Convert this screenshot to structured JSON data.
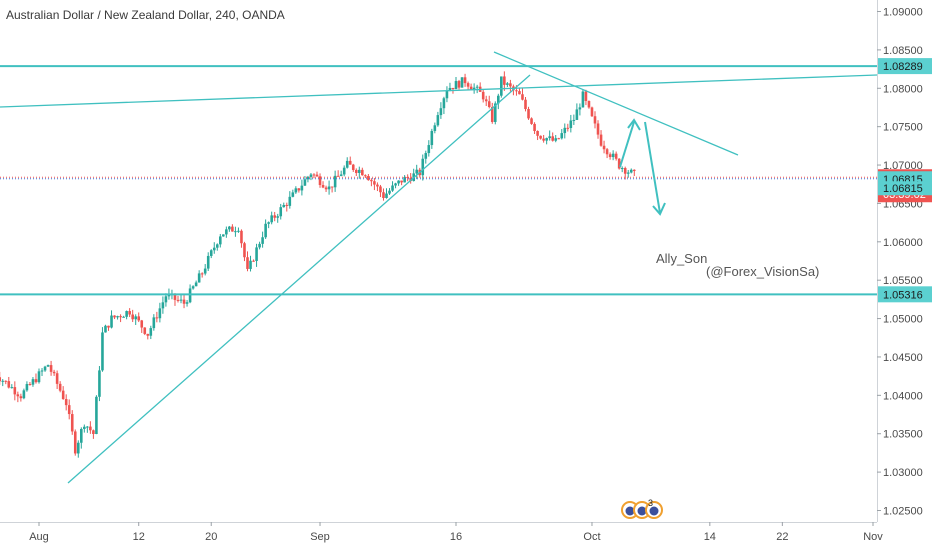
{
  "chart_data": {
    "type": "candlestick",
    "title": "Australian Dollar / New Zealand Dollar, 240, OANDA",
    "symbol": "AUD/NZD",
    "interval": "240",
    "broker": "OANDA",
    "ylim": [
      1.0235,
      1.0915
    ],
    "y_ticks": [
      "1.02500",
      "1.03000",
      "1.03500",
      "1.04000",
      "1.04500",
      "1.05000",
      "1.05500",
      "1.06000",
      "1.06500",
      "1.07000",
      "1.07500",
      "1.08000",
      "1.08500",
      "1.09000"
    ],
    "x_ticks": [
      {
        "label": "Aug",
        "date": "2019-08-01"
      },
      {
        "label": "12",
        "date": "2019-08-12"
      },
      {
        "label": "20",
        "date": "2019-08-20"
      },
      {
        "label": "Sep",
        "date": "2019-09-01"
      },
      {
        "label": "16",
        "date": "2019-09-16"
      },
      {
        "label": "Oct",
        "date": "2019-10-01"
      },
      {
        "label": "14",
        "date": "2019-10-14"
      },
      {
        "label": "22",
        "date": "2019-10-22"
      },
      {
        "label": "Nov",
        "date": "2019-11-01"
      }
    ],
    "series": [
      {
        "type": "close",
        "points": [
          {
            "date": "2019-07-27",
            "close": 1.043
          },
          {
            "date": "2019-07-30",
            "close": 1.04
          },
          {
            "date": "2019-08-02",
            "close": 1.044
          },
          {
            "date": "2019-08-04",
            "close": 1.039
          },
          {
            "date": "2019-08-05",
            "close": 1.033
          },
          {
            "date": "2019-08-06",
            "close": 1.0365
          },
          {
            "date": "2019-08-07",
            "close": 1.035
          },
          {
            "date": "2019-08-08",
            "close": 1.048
          },
          {
            "date": "2019-08-09",
            "close": 1.05
          },
          {
            "date": "2019-08-11",
            "close": 1.051
          },
          {
            "date": "2019-08-13",
            "close": 1.048
          },
          {
            "date": "2019-08-15",
            "close": 1.053
          },
          {
            "date": "2019-08-17",
            "close": 1.052
          },
          {
            "date": "2019-08-19",
            "close": 1.056
          },
          {
            "date": "2019-08-21",
            "close": 1.061
          },
          {
            "date": "2019-08-23",
            "close": 1.062
          },
          {
            "date": "2019-08-24",
            "close": 1.056
          },
          {
            "date": "2019-08-26",
            "close": 1.062
          },
          {
            "date": "2019-08-29",
            "close": 1.066
          },
          {
            "date": "2019-08-31",
            "close": 1.069
          },
          {
            "date": "2019-09-02",
            "close": 1.067
          },
          {
            "date": "2019-09-04",
            "close": 1.07
          },
          {
            "date": "2019-09-06",
            "close": 1.069
          },
          {
            "date": "2019-09-08",
            "close": 1.066
          },
          {
            "date": "2019-09-10",
            "close": 1.068
          },
          {
            "date": "2019-09-12",
            "close": 1.069
          },
          {
            "date": "2019-09-14",
            "close": 1.077
          },
          {
            "date": "2019-09-15",
            "close": 1.08
          },
          {
            "date": "2019-09-17",
            "close": 1.081
          },
          {
            "date": "2019-09-19",
            "close": 1.079
          },
          {
            "date": "2019-09-20",
            "close": 1.076
          },
          {
            "date": "2019-09-21",
            "close": 1.081
          },
          {
            "date": "2019-09-23",
            "close": 1.079
          },
          {
            "date": "2019-09-25",
            "close": 1.074
          },
          {
            "date": "2019-09-27",
            "close": 1.073
          },
          {
            "date": "2019-09-29",
            "close": 1.076
          },
          {
            "date": "2019-09-30",
            "close": 1.079
          },
          {
            "date": "2019-10-02",
            "close": 1.073
          },
          {
            "date": "2019-10-04",
            "close": 1.07
          },
          {
            "date": "2019-10-06",
            "close": 1.0684
          }
        ]
      }
    ],
    "levels": [
      {
        "price": 1.08289,
        "label": "1.08289"
      },
      {
        "price": 1.05316,
        "label": "1.05316"
      }
    ],
    "current_price": {
      "label": "1.06841",
      "countdown": "03:39:02",
      "price": 1.06841
    },
    "target": {
      "label": "1.06815",
      "price": 1.06815
    },
    "annotations": {
      "author": "Ally_Son",
      "handle": "(@Forex_VisionSa)",
      "events_count": "3"
    },
    "colors": {
      "up": "#26a69a",
      "down": "#ef5350",
      "line": "#40c0c0",
      "price_label": "#ef5350",
      "level_label": "#5bd0d0"
    }
  }
}
